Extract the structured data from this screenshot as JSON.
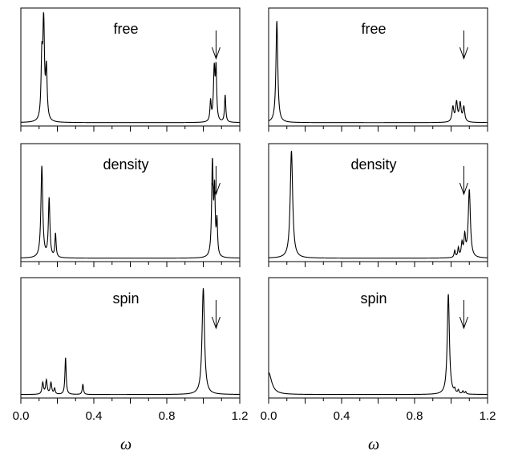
{
  "chart_data": {
    "type": "line",
    "layout": "3 rows x 2 columns",
    "xlim": [
      0.0,
      1.2
    ],
    "x_ticks": [
      "0.0",
      "0.4",
      "0.8",
      "1.2"
    ],
    "xlabel": "ω",
    "y_axis": "no tick labels",
    "grid": false,
    "marker": "downward arrow at ω ≈ 1.07",
    "panels": [
      {
        "label": "free",
        "row": 0,
        "col": 0,
        "arrow_x": 1.07,
        "baseline": 0.03,
        "ymax": 1.0,
        "peaks": [
          {
            "x": 0.115,
            "amp": 0.52,
            "w": 0.005
          },
          {
            "x": 0.125,
            "amp": 0.86,
            "w": 0.005
          },
          {
            "x": 0.14,
            "amp": 0.44,
            "w": 0.005
          },
          {
            "x": 1.04,
            "amp": 0.18,
            "w": 0.004
          },
          {
            "x": 1.06,
            "amp": 0.46,
            "w": 0.005
          },
          {
            "x": 1.07,
            "amp": 0.44,
            "w": 0.004
          },
          {
            "x": 1.12,
            "amp": 0.24,
            "w": 0.004
          }
        ]
      },
      {
        "label": "free",
        "row": 0,
        "col": 1,
        "arrow_x": 1.07,
        "baseline": 0.03,
        "ymax": 1.0,
        "peaks": [
          {
            "x": 0.045,
            "amp": 0.9,
            "w": 0.006
          },
          {
            "x": 1.01,
            "amp": 0.13,
            "w": 0.006
          },
          {
            "x": 1.03,
            "amp": 0.17,
            "w": 0.006
          },
          {
            "x": 1.05,
            "amp": 0.16,
            "w": 0.006
          },
          {
            "x": 1.07,
            "amp": 0.13,
            "w": 0.006
          }
        ]
      },
      {
        "label": "density",
        "row": 1,
        "col": 0,
        "arrow_x": 1.07,
        "baseline": 0.03,
        "ymax": 1.0,
        "peaks": [
          {
            "x": 0.115,
            "amp": 0.81,
            "w": 0.006
          },
          {
            "x": 0.155,
            "amp": 0.52,
            "w": 0.005
          },
          {
            "x": 0.19,
            "amp": 0.21,
            "w": 0.004
          },
          {
            "x": 1.05,
            "amp": 0.83,
            "w": 0.005
          },
          {
            "x": 1.062,
            "amp": 0.55,
            "w": 0.004
          },
          {
            "x": 1.075,
            "amp": 0.3,
            "w": 0.004
          }
        ]
      },
      {
        "label": "density",
        "row": 1,
        "col": 1,
        "arrow_x": 1.07,
        "baseline": 0.03,
        "ymax": 1.0,
        "peaks": [
          {
            "x": 0.125,
            "amp": 0.95,
            "w": 0.008
          },
          {
            "x": 1.02,
            "amp": 0.06,
            "w": 0.004
          },
          {
            "x": 1.04,
            "amp": 0.08,
            "w": 0.004
          },
          {
            "x": 1.06,
            "amp": 0.12,
            "w": 0.005
          },
          {
            "x": 1.075,
            "amp": 0.18,
            "w": 0.005
          },
          {
            "x": 1.1,
            "amp": 0.6,
            "w": 0.007
          }
        ]
      },
      {
        "label": "spin",
        "row": 2,
        "col": 0,
        "arrow_x": 1.07,
        "baseline": 0.03,
        "ymax": 1.0,
        "peaks": [
          {
            "x": 0.12,
            "amp": 0.1,
            "w": 0.005
          },
          {
            "x": 0.14,
            "amp": 0.12,
            "w": 0.005
          },
          {
            "x": 0.165,
            "amp": 0.1,
            "w": 0.005
          },
          {
            "x": 0.185,
            "amp": 0.05,
            "w": 0.004
          },
          {
            "x": 0.245,
            "amp": 0.32,
            "w": 0.004
          },
          {
            "x": 0.34,
            "amp": 0.09,
            "w": 0.004
          },
          {
            "x": 1.0,
            "amp": 0.92,
            "w": 0.008
          }
        ]
      },
      {
        "label": "spin",
        "row": 2,
        "col": 1,
        "arrow_x": 1.07,
        "baseline": 0.03,
        "ymax": 1.0,
        "peaks": [
          {
            "x": 0.0,
            "amp": 0.19,
            "w": 0.02
          },
          {
            "x": 0.985,
            "amp": 0.87,
            "w": 0.007
          },
          {
            "x": 1.02,
            "amp": 0.03,
            "w": 0.004
          },
          {
            "x": 1.04,
            "amp": 0.03,
            "w": 0.004
          },
          {
            "x": 1.065,
            "amp": 0.025,
            "w": 0.004
          },
          {
            "x": 1.08,
            "amp": 0.02,
            "w": 0.004
          }
        ]
      }
    ]
  }
}
